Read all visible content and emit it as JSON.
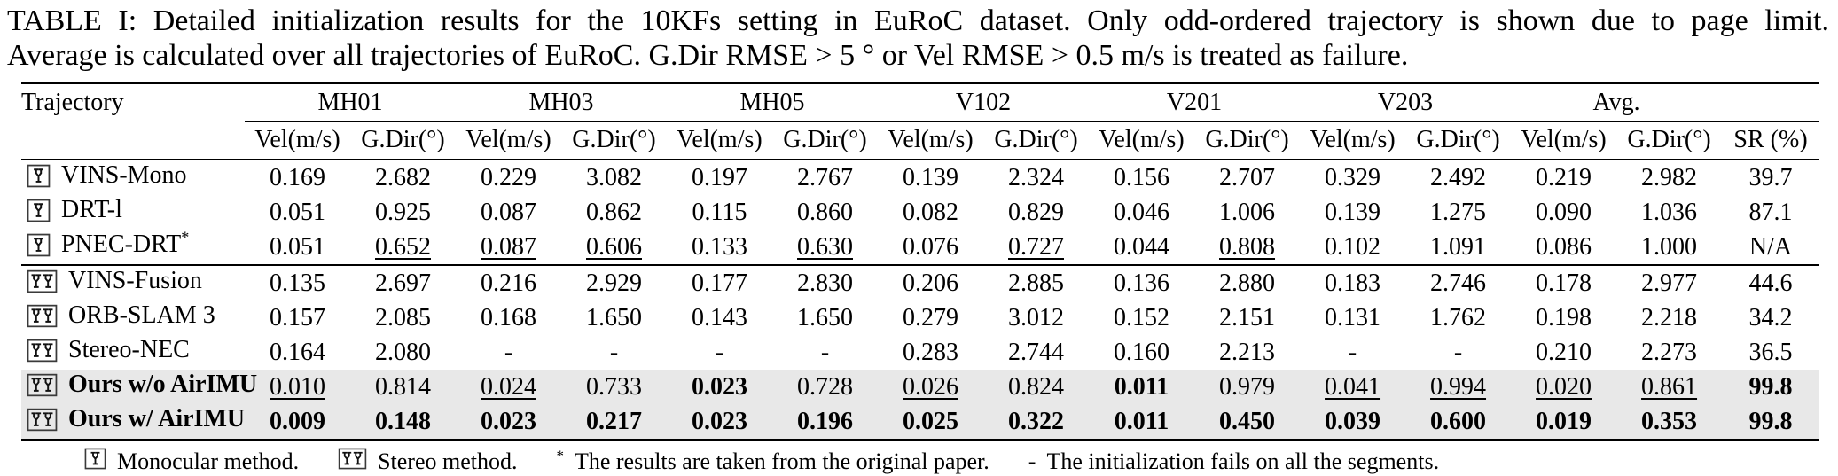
{
  "caption": {
    "line1": "TABLE I: Detailed initialization results for the 10KFs setting in EuRoC dataset. Only odd-ordered trajectory is shown due to page limit.",
    "line2": "Average is calculated over all trajectories of EuRoC. G.Dir RMSE > 5 ° or Vel RMSE > 0.5 m/s is treated as failure."
  },
  "colors": {
    "text": "#000000",
    "rule": "#000000",
    "highlight_row_bg": "#e8e8e8"
  },
  "table": {
    "corner_header": "Trajectory",
    "group_headers": [
      "MH01",
      "MH03",
      "MH05",
      "V102",
      "V201",
      "V203",
      "Avg."
    ],
    "sub_headers": {
      "vel": "Vel(m/s)",
      "gdir": "G.Dir(°)",
      "sr": "SR (%)"
    },
    "cell_style_legend": {
      "p": "plain",
      "b": "bold-best",
      "u": "underline-second-best"
    },
    "rows": [
      {
        "name": "VINS-Mono",
        "icon": "mono-camera-icon",
        "bold_name": false,
        "highlight": false,
        "separator_above": false,
        "cells": [
          [
            "0.169",
            "p"
          ],
          [
            "2.682",
            "p"
          ],
          [
            "0.229",
            "p"
          ],
          [
            "3.082",
            "p"
          ],
          [
            "0.197",
            "p"
          ],
          [
            "2.767",
            "p"
          ],
          [
            "0.139",
            "p"
          ],
          [
            "2.324",
            "p"
          ],
          [
            "0.156",
            "p"
          ],
          [
            "2.707",
            "p"
          ],
          [
            "0.329",
            "p"
          ],
          [
            "2.492",
            "p"
          ],
          [
            "0.219",
            "p"
          ],
          [
            "2.982",
            "p"
          ],
          [
            "39.7",
            "p"
          ]
        ]
      },
      {
        "name": "DRT-l",
        "icon": "mono-camera-icon",
        "bold_name": false,
        "highlight": false,
        "separator_above": false,
        "cells": [
          [
            "0.051",
            "p"
          ],
          [
            "0.925",
            "p"
          ],
          [
            "0.087",
            "p"
          ],
          [
            "0.862",
            "p"
          ],
          [
            "0.115",
            "p"
          ],
          [
            "0.860",
            "p"
          ],
          [
            "0.082",
            "p"
          ],
          [
            "0.829",
            "p"
          ],
          [
            "0.046",
            "p"
          ],
          [
            "1.006",
            "p"
          ],
          [
            "0.139",
            "p"
          ],
          [
            "1.275",
            "p"
          ],
          [
            "0.090",
            "p"
          ],
          [
            "1.036",
            "p"
          ],
          [
            "87.1",
            "p"
          ]
        ]
      },
      {
        "name": "PNEC-DRT*",
        "icon": "mono-camera-icon",
        "bold_name": false,
        "highlight": false,
        "separator_above": false,
        "cells": [
          [
            "0.051",
            "p"
          ],
          [
            "0.652",
            "u"
          ],
          [
            "0.087",
            "u"
          ],
          [
            "0.606",
            "u"
          ],
          [
            "0.133",
            "p"
          ],
          [
            "0.630",
            "u"
          ],
          [
            "0.076",
            "p"
          ],
          [
            "0.727",
            "u"
          ],
          [
            "0.044",
            "p"
          ],
          [
            "0.808",
            "u"
          ],
          [
            "0.102",
            "p"
          ],
          [
            "1.091",
            "p"
          ],
          [
            "0.086",
            "p"
          ],
          [
            "1.000",
            "p"
          ],
          [
            "N/A",
            "p"
          ]
        ]
      },
      {
        "name": "VINS-Fusion",
        "icon": "stereo-camera-icon",
        "bold_name": false,
        "highlight": false,
        "separator_above": true,
        "cells": [
          [
            "0.135",
            "p"
          ],
          [
            "2.697",
            "p"
          ],
          [
            "0.216",
            "p"
          ],
          [
            "2.929",
            "p"
          ],
          [
            "0.177",
            "p"
          ],
          [
            "2.830",
            "p"
          ],
          [
            "0.206",
            "p"
          ],
          [
            "2.885",
            "p"
          ],
          [
            "0.136",
            "p"
          ],
          [
            "2.880",
            "p"
          ],
          [
            "0.183",
            "p"
          ],
          [
            "2.746",
            "p"
          ],
          [
            "0.178",
            "p"
          ],
          [
            "2.977",
            "p"
          ],
          [
            "44.6",
            "p"
          ]
        ]
      },
      {
        "name": "ORB-SLAM 3",
        "icon": "stereo-camera-icon",
        "bold_name": false,
        "highlight": false,
        "separator_above": false,
        "cells": [
          [
            "0.157",
            "p"
          ],
          [
            "2.085",
            "p"
          ],
          [
            "0.168",
            "p"
          ],
          [
            "1.650",
            "p"
          ],
          [
            "0.143",
            "p"
          ],
          [
            "1.650",
            "p"
          ],
          [
            "0.279",
            "p"
          ],
          [
            "3.012",
            "p"
          ],
          [
            "0.152",
            "p"
          ],
          [
            "2.151",
            "p"
          ],
          [
            "0.131",
            "p"
          ],
          [
            "1.762",
            "p"
          ],
          [
            "0.198",
            "p"
          ],
          [
            "2.218",
            "p"
          ],
          [
            "34.2",
            "p"
          ]
        ]
      },
      {
        "name": "Stereo-NEC",
        "icon": "stereo-camera-icon",
        "bold_name": false,
        "highlight": false,
        "separator_above": false,
        "cells": [
          [
            "0.164",
            "p"
          ],
          [
            "2.080",
            "p"
          ],
          [
            "-",
            "p"
          ],
          [
            "-",
            "p"
          ],
          [
            "-",
            "p"
          ],
          [
            "-",
            "p"
          ],
          [
            "0.283",
            "p"
          ],
          [
            "2.744",
            "p"
          ],
          [
            "0.160",
            "p"
          ],
          [
            "2.213",
            "p"
          ],
          [
            "-",
            "p"
          ],
          [
            "-",
            "p"
          ],
          [
            "0.210",
            "p"
          ],
          [
            "2.273",
            "p"
          ],
          [
            "36.5",
            "p"
          ]
        ]
      },
      {
        "name": "Ours w/o AirIMU",
        "icon": "stereo-camera-icon",
        "bold_name": true,
        "highlight": true,
        "separator_above": false,
        "cells": [
          [
            "0.010",
            "u"
          ],
          [
            "0.814",
            "p"
          ],
          [
            "0.024",
            "u"
          ],
          [
            "0.733",
            "p"
          ],
          [
            "0.023",
            "b"
          ],
          [
            "0.728",
            "p"
          ],
          [
            "0.026",
            "u"
          ],
          [
            "0.824",
            "p"
          ],
          [
            "0.011",
            "b"
          ],
          [
            "0.979",
            "p"
          ],
          [
            "0.041",
            "u"
          ],
          [
            "0.994",
            "u"
          ],
          [
            "0.020",
            "u"
          ],
          [
            "0.861",
            "u"
          ],
          [
            "99.8",
            "b"
          ]
        ]
      },
      {
        "name": "Ours w/ AirIMU",
        "icon": "stereo-camera-icon",
        "bold_name": true,
        "highlight": true,
        "separator_above": false,
        "cells": [
          [
            "0.009",
            "b"
          ],
          [
            "0.148",
            "b"
          ],
          [
            "0.023",
            "b"
          ],
          [
            "0.217",
            "b"
          ],
          [
            "0.023",
            "b"
          ],
          [
            "0.196",
            "b"
          ],
          [
            "0.025",
            "b"
          ],
          [
            "0.322",
            "b"
          ],
          [
            "0.011",
            "b"
          ],
          [
            "0.450",
            "b"
          ],
          [
            "0.039",
            "b"
          ],
          [
            "0.600",
            "b"
          ],
          [
            "0.019",
            "b"
          ],
          [
            "0.353",
            "b"
          ],
          [
            "99.8",
            "b"
          ]
        ]
      }
    ]
  },
  "footnote": {
    "items": [
      {
        "icon": "mono-camera-icon",
        "marker": "",
        "text": "Monocular method."
      },
      {
        "icon": "stereo-camera-icon",
        "marker": "",
        "text": "Stereo method."
      },
      {
        "icon": "",
        "marker": "*",
        "text": "The results are taken from the original paper."
      },
      {
        "icon": "",
        "marker": "-",
        "text": "The initialization fails on all the segments."
      }
    ]
  }
}
